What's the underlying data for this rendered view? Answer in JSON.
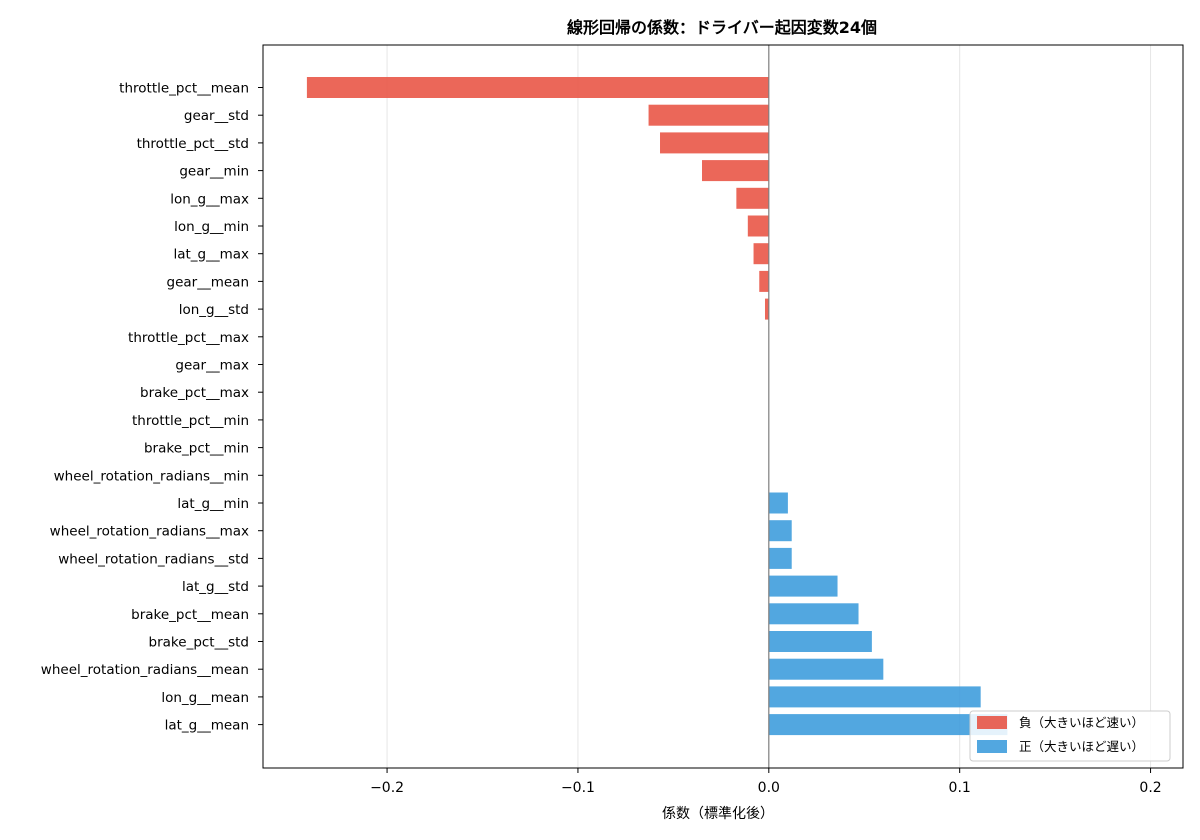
{
  "chart_data": {
    "type": "bar",
    "orientation": "horizontal",
    "title": "線形回帰の係数：ドライバー起因変数24個",
    "xlabel": "係数（標準化後）",
    "ylabel": "",
    "xlim": [
      -0.265,
      0.217
    ],
    "xticks": [
      -0.2,
      -0.1,
      0.0,
      0.1,
      0.2
    ],
    "xtick_labels": [
      "−0.2",
      "−0.1",
      "0.0",
      "0.1",
      "0.2"
    ],
    "grid": "x",
    "zero_line": true,
    "legend": {
      "placement": "bottom-right",
      "entries": [
        {
          "label": "負（大きいほど速い）",
          "color": "#e74c3c"
        },
        {
          "label": "正（大きいほど遅い）",
          "color": "#3498db"
        }
      ]
    },
    "colors": {
      "negative": "#e74c3c",
      "positive": "#3498db"
    },
    "categories": [
      "throttle_pct__mean",
      "gear__std",
      "throttle_pct__std",
      "gear__min",
      "lon_g__max",
      "lon_g__min",
      "lat_g__max",
      "gear__mean",
      "lon_g__std",
      "throttle_pct__max",
      "gear__max",
      "brake_pct__max",
      "throttle_pct__min",
      "brake_pct__min",
      "wheel_rotation_radians__min",
      "lat_g__min",
      "wheel_rotation_radians__max",
      "wheel_rotation_radians__std",
      "lat_g__std",
      "brake_pct__mean",
      "brake_pct__std",
      "wheel_rotation_radians__mean",
      "lon_g__mean",
      "lat_g__mean"
    ],
    "values": [
      -0.242,
      -0.063,
      -0.057,
      -0.035,
      -0.017,
      -0.011,
      -0.008,
      -0.005,
      -0.002,
      0.0,
      0.0,
      0.0,
      0.0,
      0.0,
      0.0,
      0.01,
      0.012,
      0.012,
      0.036,
      0.047,
      0.054,
      0.06,
      0.111,
      0.125
    ]
  }
}
